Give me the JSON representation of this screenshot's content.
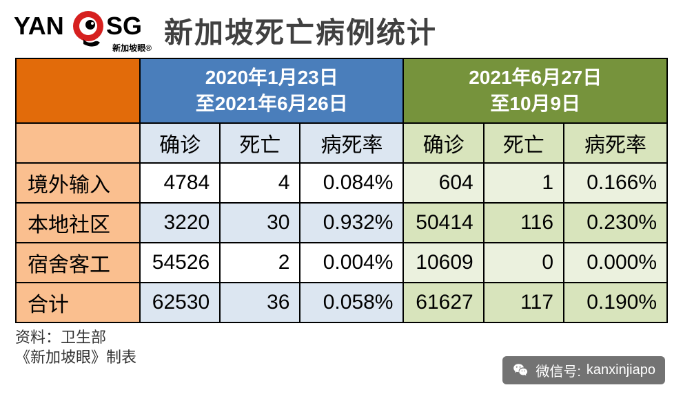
{
  "logo": {
    "text_left": "YAN",
    "text_right": "SG",
    "sub": "新加坡眼®",
    "circle_color": "#d6201f",
    "text_color": "#000000"
  },
  "title": "新加坡死亡病例统计",
  "periods": [
    {
      "label_line1": "2020年1月23日",
      "label_line2": "至2021年6月26日",
      "header_bg": "#4a7ebb",
      "sub_bg": "#dce6f1",
      "cell_bg_light": "#ffffff",
      "cell_bg_alt": "#dce6f1"
    },
    {
      "label_line1": "2021年6月27日",
      "label_line2": "至10月9日",
      "header_bg": "#76933c",
      "sub_bg": "#d8e4bc",
      "cell_bg_light": "#ebf1de",
      "cell_bg_alt": "#d8e4bc"
    }
  ],
  "subheaders": [
    "确诊",
    "死亡",
    "病死率"
  ],
  "row_label_colors": {
    "corner_bg": "#e26b0a",
    "sub_bg": "#fabf8f",
    "row_bg": "#fabf8f"
  },
  "rows": [
    {
      "label": "境外输入",
      "p1": [
        "4784",
        "4",
        "0.084%"
      ],
      "p2": [
        "604",
        "1",
        "0.166%"
      ]
    },
    {
      "label": "本地社区",
      "p1": [
        "3220",
        "30",
        "0.932%"
      ],
      "p2": [
        "50414",
        "116",
        "0.230%"
      ]
    },
    {
      "label": "宿舍客工",
      "p1": [
        "54526",
        "2",
        "0.004%"
      ],
      "p2": [
        "10609",
        "0",
        "0.000%"
      ]
    },
    {
      "label": "合计",
      "p1": [
        "62530",
        "36",
        "0.058%"
      ],
      "p2": [
        "61627",
        "117",
        "0.190%"
      ]
    }
  ],
  "column_widths": {
    "label": "180px",
    "data": "auto"
  },
  "footnotes": [
    "资料：卫生部",
    "《新加坡眼》制表"
  ],
  "wechat": {
    "prefix": "微信号:",
    "id": "kanxinjiapo",
    "icon_color": "#ffffff"
  }
}
